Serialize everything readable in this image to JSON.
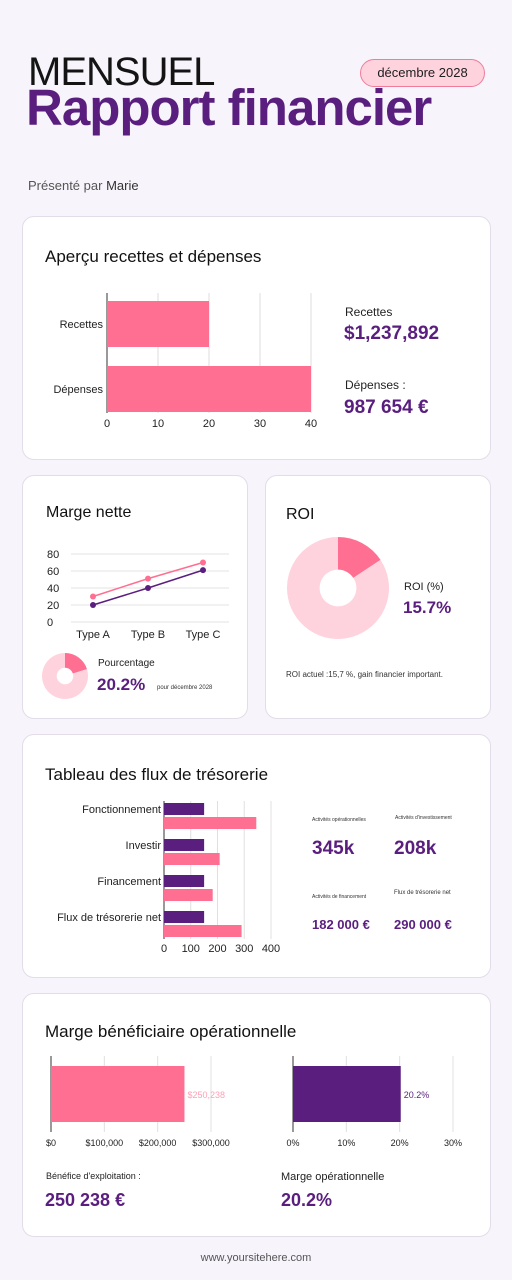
{
  "header": {
    "kicker": "MENSUEL",
    "title": "Rapport financier",
    "date_badge": "décembre 2028",
    "presented_by_prefix": "Présenté par",
    "presenter": "Marie"
  },
  "colors": {
    "purple": "#5a1e7e",
    "pink": "#ff6f91",
    "light_pink": "#ffd3dd"
  },
  "overview": {
    "title": "Aperçu recettes et dépenses",
    "recettes_label": "Recettes",
    "recettes_value": "$1,237,892",
    "depenses_label": "Dépenses :",
    "depenses_value": "987 654 €"
  },
  "marge": {
    "title": "Marge nette",
    "pct_label": "Pourcentage",
    "pct_value": "20.2%",
    "pct_note": "pour décembre 2028"
  },
  "roi": {
    "title": "ROI",
    "label": "ROI (%)",
    "value": "15.7%",
    "note": "ROI actuel :15,7 %, gain financier important."
  },
  "flux": {
    "title": "Tableau des flux de trésorerie",
    "stats": [
      {
        "label": "Activités opérationnelles",
        "value": "345k"
      },
      {
        "label": "Activités d'investissement",
        "value": "208k"
      },
      {
        "label": "Activités de financement",
        "value": "182 000 €"
      },
      {
        "label": "Flux de trésorerie net",
        "value": "290 000 €"
      }
    ]
  },
  "operating": {
    "title": "Marge bénéficiaire opérationnelle",
    "left_label": "Bénéfice d'exploitation :",
    "left_value": "250 238 €",
    "right_label": "Marge opérationnelle",
    "right_value": "20.2%"
  },
  "footer": {
    "url": "www.yoursitehere.com"
  },
  "chart_data": [
    {
      "type": "bar",
      "orientation": "horizontal",
      "categories": [
        "Recettes",
        "Dépenses"
      ],
      "values": [
        20,
        40
      ],
      "xlim": [
        0,
        40
      ],
      "xticks": [
        "0",
        "10",
        "20",
        "30",
        "40"
      ],
      "grid": true
    },
    {
      "type": "line",
      "categories": [
        "Type A",
        "Type B",
        "Type C"
      ],
      "series": [
        {
          "values": [
            30,
            51,
            70
          ],
          "color": "#ff6f91"
        },
        {
          "values": [
            20,
            40,
            61
          ],
          "color": "#5a1e7e"
        }
      ],
      "ylim": [
        0,
        80
      ],
      "yticks": [
        "0",
        "20",
        "40",
        "60",
        "80"
      ],
      "grid": true
    },
    {
      "type": "pie",
      "style": "donut",
      "slices": [
        20.2,
        79.8
      ],
      "colors": [
        "#ff6f91",
        "#ffd3dd"
      ]
    },
    {
      "type": "pie",
      "style": "donut",
      "slices": [
        15.7,
        84.3
      ],
      "colors": [
        "#ff6f91",
        "#ffd3dd"
      ]
    },
    {
      "type": "bar",
      "orientation": "horizontal",
      "categories": [
        "Fonctionnement",
        "Investir",
        "Financement",
        "Flux de trésorerie net"
      ],
      "series": [
        {
          "values": [
            150,
            150,
            150,
            150
          ],
          "color": "#5a1e7e"
        },
        {
          "values": [
            345,
            208,
            182,
            290
          ],
          "color": "#ff6f91"
        }
      ],
      "xlim": [
        0,
        400
      ],
      "xticks": [
        "0",
        "100",
        "200",
        "300",
        "400"
      ],
      "grid": true
    },
    {
      "type": "bar",
      "orientation": "horizontal",
      "values": [
        250238
      ],
      "data_label": "$250,238",
      "xlim": [
        0,
        300000
      ],
      "xticks": [
        "$0",
        "$100,000",
        "$200,000",
        "$300,000"
      ],
      "color": "#ff6f91",
      "grid": true
    },
    {
      "type": "bar",
      "orientation": "horizontal",
      "values": [
        20.2
      ],
      "data_label": "20.2%",
      "xlim": [
        0,
        30
      ],
      "xticks": [
        "0%",
        "10%",
        "20%",
        "30%"
      ],
      "color": "#5a1e7e",
      "grid": true
    }
  ]
}
